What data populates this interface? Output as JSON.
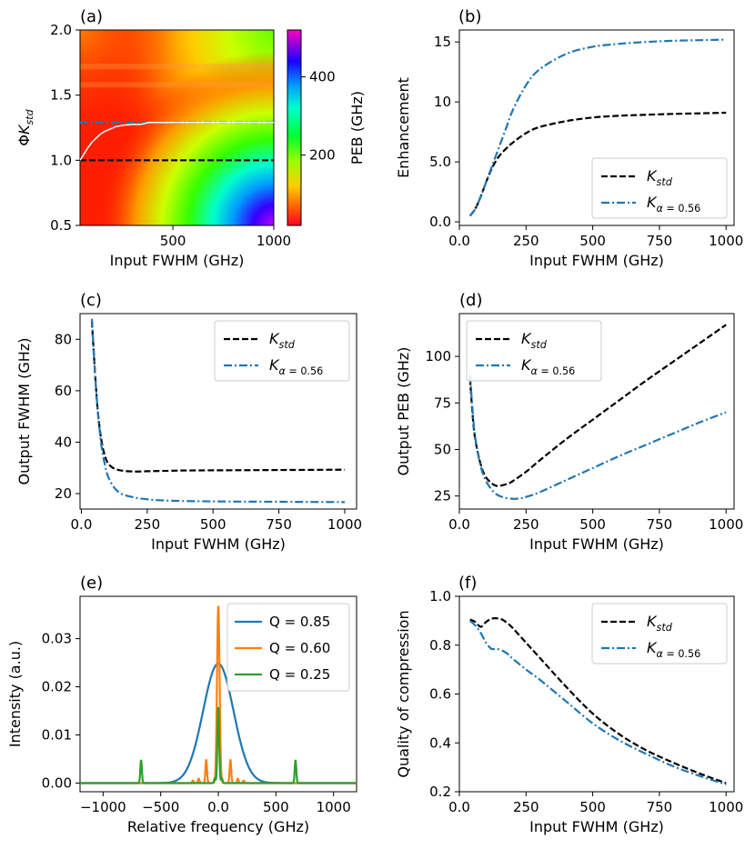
{
  "colors": {
    "std": "#000000",
    "alpha": "#1f77b4",
    "q85": "#1f77b4",
    "q60": "#ff7f0e",
    "q25": "#2ca02c",
    "heat_line": "#ffffff"
  },
  "chart_data": [
    {
      "panel": "(a)",
      "type": "heatmap",
      "xlabel": "Input FWHM (GHz)",
      "ylabel": "ΦK",
      "ylabel_sub": "std",
      "xlim": [
        40,
        1000
      ],
      "ylim": [
        0.5,
        2.0
      ],
      "xticks": [
        500,
        1000
      ],
      "yticks": [
        0.5,
        1.0,
        1.5,
        2.0
      ],
      "colorbar": {
        "label": "PEB (GHz)",
        "ticks": [
          200,
          400
        ],
        "range": [
          20,
          520
        ],
        "colormap": "gist_rainbow"
      },
      "std_line_y": 1.0,
      "alpha_line_y": 1.29,
      "optimum_curve": {
        "x": [
          40,
          60,
          80,
          100,
          120,
          140,
          160,
          190,
          220,
          260,
          300,
          340,
          380,
          420,
          500,
          700,
          1000
        ],
        "y": [
          1.0,
          1.05,
          1.1,
          1.14,
          1.17,
          1.2,
          1.22,
          1.24,
          1.26,
          1.27,
          1.275,
          1.275,
          1.29,
          1.29,
          1.29,
          1.29,
          1.29
        ]
      }
    },
    {
      "panel": "(b)",
      "type": "line",
      "xlabel": "Input FWHM (GHz)",
      "ylabel": "Enhancement",
      "xlim": [
        0,
        1030
      ],
      "ylim": [
        -0.3,
        16
      ],
      "xticks": [
        0,
        250,
        500,
        750,
        1000
      ],
      "yticks": [
        0,
        5,
        10,
        15
      ],
      "legend": "bottom-right",
      "series": [
        {
          "name": "K",
          "sub": "std",
          "style": "dashed",
          "x": [
            40,
            60,
            80,
            100,
            125,
            150,
            175,
            200,
            250,
            300,
            400,
            500,
            600,
            700,
            800,
            900,
            1000
          ],
          "y": [
            0.5,
            1.1,
            2.1,
            3.3,
            4.6,
            5.5,
            6.1,
            6.6,
            7.4,
            7.9,
            8.4,
            8.7,
            8.85,
            8.93,
            9.0,
            9.05,
            9.1
          ]
        },
        {
          "name": "K",
          "sub": "α = 0.56",
          "style": "dashdot",
          "x": [
            40,
            60,
            80,
            100,
            125,
            150,
            175,
            200,
            250,
            300,
            400,
            500,
            600,
            700,
            800,
            900,
            1000
          ],
          "y": [
            0.5,
            1.1,
            2.1,
            3.3,
            4.8,
            6.3,
            7.8,
            9.3,
            11.4,
            12.7,
            14.0,
            14.6,
            14.85,
            15.0,
            15.1,
            15.15,
            15.2
          ]
        }
      ]
    },
    {
      "panel": "(c)",
      "type": "line",
      "xlabel": "Input FWHM (GHz)",
      "ylabel": "Output FWHM (GHz)",
      "xlim": [
        -5,
        1045
      ],
      "ylim": [
        14,
        90
      ],
      "xticks": [
        0,
        250,
        500,
        750,
        1000
      ],
      "yticks": [
        20,
        40,
        60,
        80
      ],
      "legend": "top-right",
      "series": [
        {
          "name": "K",
          "sub": "std",
          "style": "dashed",
          "x": [
            40,
            50,
            60,
            70,
            80,
            90,
            100,
            120,
            150,
            200,
            250,
            300,
            400,
            600,
            800,
            1000
          ],
          "y": [
            87,
            70,
            55,
            45,
            38.5,
            34.5,
            32,
            30,
            29,
            28.6,
            28.7,
            28.8,
            29,
            29.1,
            29.2,
            29.3
          ]
        },
        {
          "name": "K",
          "sub": "α = 0.56",
          "style": "dashdot",
          "x": [
            40,
            50,
            60,
            70,
            80,
            90,
            100,
            120,
            150,
            200,
            250,
            300,
            400,
            600,
            800,
            1000
          ],
          "y": [
            88,
            70,
            55,
            44,
            36,
            31,
            27,
            23,
            20,
            18.5,
            17.8,
            17.4,
            17.1,
            16.9,
            16.8,
            16.7
          ]
        }
      ]
    },
    {
      "panel": "(d)",
      "type": "line",
      "xlabel": "Input FWHM (GHz)",
      "ylabel": "Output PEB (GHz)",
      "xlim": [
        0,
        1030
      ],
      "ylim": [
        18,
        123
      ],
      "xticks": [
        0,
        250,
        500,
        750,
        1000
      ],
      "yticks": [
        25,
        50,
        75,
        100
      ],
      "legend": "top-left",
      "series": [
        {
          "name": "K",
          "sub": "std",
          "style": "dashed",
          "x": [
            40,
            50,
            60,
            80,
            100,
            130,
            150,
            180,
            200,
            250,
            300,
            400,
            500,
            600,
            700,
            800,
            900,
            1000
          ],
          "y": [
            88,
            68,
            55,
            42,
            35,
            31,
            30.5,
            31.5,
            33,
            38,
            44,
            55.5,
            66,
            76.5,
            87,
            97,
            107,
            117
          ]
        },
        {
          "name": "K",
          "sub": "α = 0.56",
          "style": "dashdot",
          "x": [
            40,
            50,
            60,
            80,
            100,
            130,
            160,
            200,
            230,
            250,
            300,
            400,
            500,
            600,
            700,
            800,
            900,
            1000
          ],
          "y": [
            90,
            70,
            56,
            41,
            33,
            27,
            24.5,
            23.5,
            23.8,
            24.5,
            27,
            33.5,
            40,
            46.5,
            52.5,
            58.5,
            64.5,
            70
          ]
        }
      ]
    },
    {
      "panel": "(e)",
      "type": "line",
      "xlabel": "Relative frequency (GHz)",
      "ylabel": "Intensity (a.u.)",
      "xlim": [
        -1200,
        1200
      ],
      "ylim": [
        -0.0018,
        0.0388
      ],
      "xticks": [
        -1000,
        -500,
        0,
        500,
        1000
      ],
      "yticks": [
        0.0,
        0.01,
        0.02,
        0.03
      ],
      "ytick_labels": [
        "0.00",
        "0.01",
        "0.02",
        "0.03"
      ],
      "legend": "top-right",
      "series": [
        {
          "name": "Q = 0.85",
          "model": "gaussian",
          "peak": 0.0248,
          "fwhm": 310
        },
        {
          "name": "Q = 0.60",
          "model": "central-with-sidelobes",
          "peak": 0.0368,
          "fwhm": 26,
          "sidelobes": [
            [
              -105,
              0.0048
            ],
            [
              105,
              0.0048
            ],
            [
              -170,
              0.0009
            ],
            [
              170,
              0.0009
            ],
            [
              -220,
              0.0005
            ],
            [
              220,
              0.0005
            ]
          ]
        },
        {
          "name": "Q = 0.25",
          "model": "central-with-sidelobes",
          "peak": 0.0158,
          "fwhm": 18,
          "sidelobes": [
            [
              -670,
              0.0048
            ],
            [
              670,
              0.0048
            ],
            [
              -30,
              0.001
            ],
            [
              30,
              0.001
            ]
          ]
        }
      ]
    },
    {
      "panel": "(f)",
      "type": "line",
      "xlabel": "Input FWHM (GHz)",
      "ylabel": "Quality of compression",
      "xlim": [
        0,
        1030
      ],
      "ylim": [
        0.2,
        1.0
      ],
      "xticks": [
        0,
        250,
        500,
        750,
        1000
      ],
      "yticks": [
        0.2,
        0.4,
        0.6,
        0.8,
        1.0
      ],
      "legend": "top-right",
      "series": [
        {
          "name": "K",
          "sub": "std",
          "style": "dashed",
          "x": [
            40,
            60,
            80,
            100,
            120,
            140,
            160,
            180,
            200,
            250,
            300,
            400,
            500,
            600,
            700,
            800,
            900,
            1000
          ],
          "y": [
            0.905,
            0.895,
            0.875,
            0.895,
            0.908,
            0.91,
            0.905,
            0.89,
            0.87,
            0.81,
            0.75,
            0.63,
            0.52,
            0.435,
            0.37,
            0.32,
            0.275,
            0.235
          ]
        },
        {
          "name": "K",
          "sub": "α = 0.56",
          "style": "dashdot",
          "x": [
            40,
            60,
            80,
            100,
            120,
            140,
            160,
            180,
            200,
            250,
            300,
            400,
            500,
            600,
            700,
            800,
            900,
            1000
          ],
          "y": [
            0.9,
            0.88,
            0.85,
            0.81,
            0.785,
            0.785,
            0.778,
            0.765,
            0.745,
            0.7,
            0.66,
            0.57,
            0.48,
            0.41,
            0.355,
            0.305,
            0.265,
            0.23
          ]
        }
      ]
    }
  ]
}
